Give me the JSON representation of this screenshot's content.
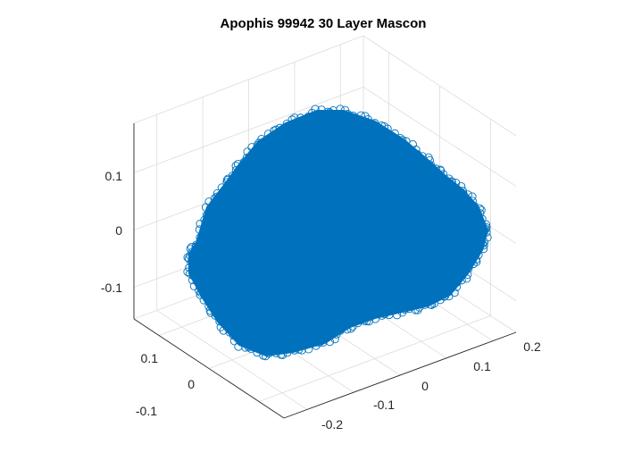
{
  "chart_data": {
    "type": "scatter",
    "title": "Apophis 99942 30 Layer Mascon",
    "xlabel": "",
    "ylabel": "",
    "zlabel": "",
    "marker": "open-circle",
    "series_color": "#0072BD",
    "grid": true,
    "x_ticks": [
      "-0.2",
      "-0.1",
      "0",
      "0.1",
      "0.2"
    ],
    "y_ticks": [
      "-0.1",
      "0",
      "0.1"
    ],
    "z_ticks": [
      "-0.1",
      "0",
      "0.1"
    ],
    "xlim": [
      -0.2,
      0.2
    ],
    "ylim": [
      -0.15,
      0.15
    ],
    "zlim": [
      -0.17,
      0.19
    ],
    "description_of_points": "dense mascon point cloud forming the asteroid shape"
  }
}
